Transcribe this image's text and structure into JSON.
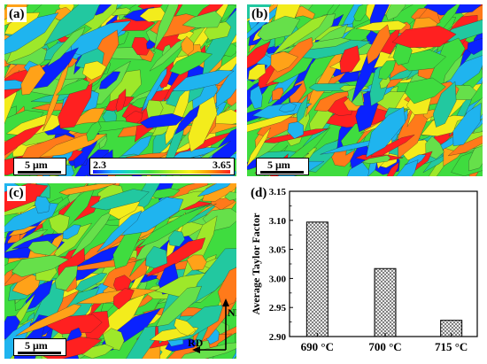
{
  "panels": [
    {
      "id": "a",
      "label": "(a)",
      "scale": "5 μm",
      "palette": [
        "#ff2020",
        "#0a22ff",
        "#ffa218",
        "#f3ec1c",
        "#3fdc3f",
        "#9ee82a",
        "#22c8a0",
        "#1fb4ef",
        "#ff7a1a",
        "#66e04a"
      ]
    },
    {
      "id": "b",
      "label": "(b)",
      "scale": "5 μm",
      "palette": [
        "#ff2020",
        "#0a22ff",
        "#ffa218",
        "#f3ec1c",
        "#3fdc3f",
        "#9ee82a",
        "#22c8a0",
        "#1fb4ef",
        "#ff7a1a",
        "#66e04a"
      ]
    },
    {
      "id": "c",
      "label": "(c)",
      "scale": "5 μm",
      "palette": [
        "#ff2020",
        "#0a22ff",
        "#ffa218",
        "#f3ec1c",
        "#3fdc3f",
        "#9ee82a",
        "#22c8a0",
        "#1fb4ef",
        "#ff7a1a",
        "#66e04a"
      ]
    }
  ],
  "colorbar": {
    "min_label": "2.3",
    "max_label": "3.65"
  },
  "axes_indicator": {
    "vertical": "ND",
    "horizontal": "RD"
  },
  "chart_label": "(d)",
  "chart_data": {
    "type": "bar",
    "categories": [
      "690 °C",
      "700 °C",
      "715 °C"
    ],
    "values": [
      3.097,
      3.017,
      2.928
    ],
    "ylabel": "Average Taylor Factor",
    "xlabel": "",
    "ylim": [
      2.9,
      3.15
    ],
    "yticks": [
      "2.90",
      "2.95",
      "3.00",
      "3.05",
      "3.10",
      "3.15"
    ],
    "grid": false,
    "pattern": "crosshatch"
  }
}
